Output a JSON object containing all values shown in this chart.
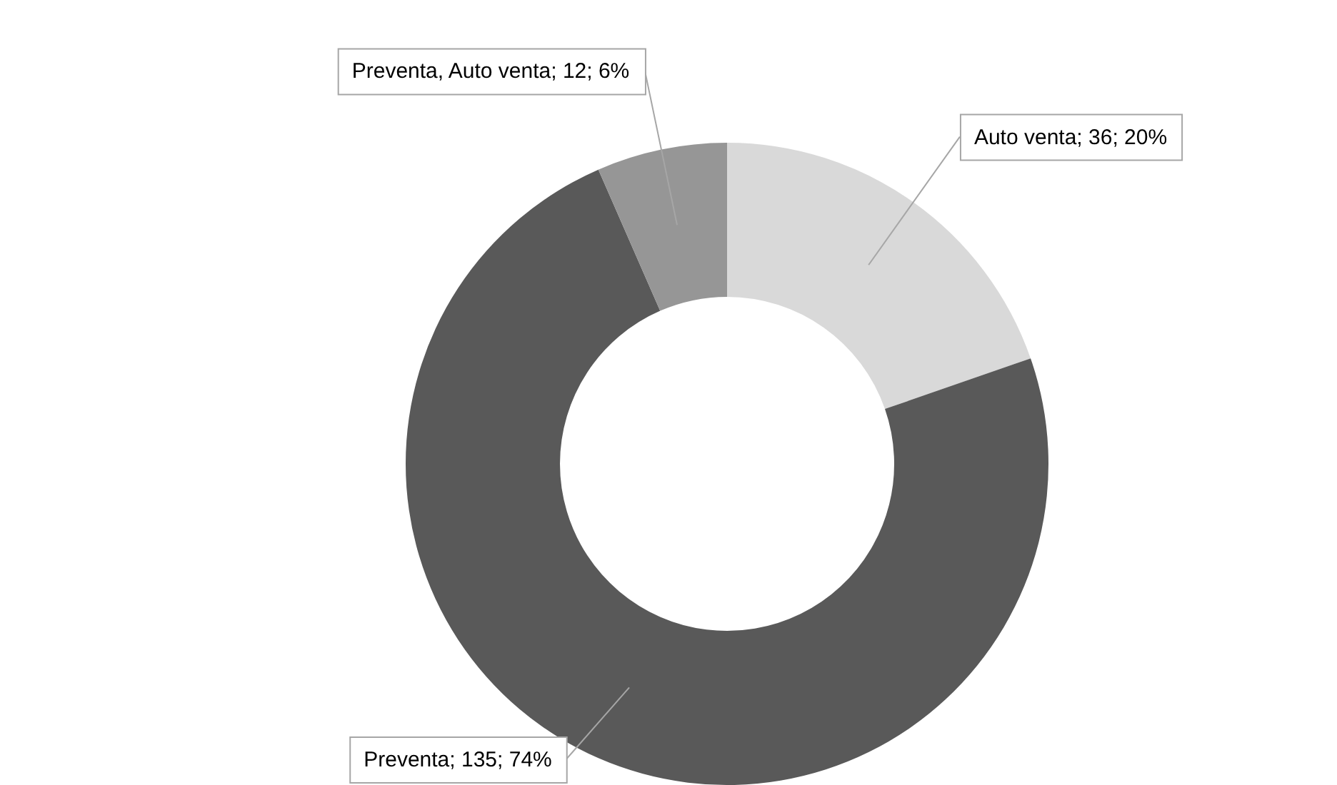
{
  "chart_data": {
    "type": "donut",
    "categories": [
      "Auto venta",
      "Preventa",
      "Preventa, Auto venta"
    ],
    "values": [
      36,
      135,
      12
    ],
    "colors": [
      "#d9d9d9",
      "#595959",
      "#969696"
    ],
    "value_labels": [
      "36; 20%",
      "135; 74%",
      "12; 6%"
    ],
    "legend": false
  }
}
